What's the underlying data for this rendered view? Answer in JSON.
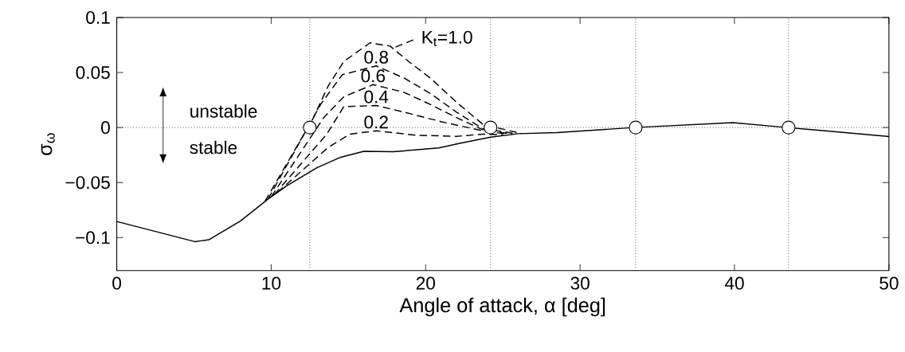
{
  "chart_data": {
    "type": "line",
    "xlabel": "Angle of attack, α [deg]",
    "ylabel": "σ$_{ω}$",
    "xlim": [
      0,
      50
    ],
    "ylim": [
      -0.13,
      0.1
    ],
    "xticks": [
      0,
      10,
      20,
      30,
      40,
      50
    ],
    "yticks": [
      {
        "value": -0.1,
        "label": "−0.1"
      },
      {
        "value": -0.05,
        "label": "−0.05"
      },
      0,
      0.05,
      0.1
    ],
    "series": [
      {
        "color": "#000000",
        "line_style": "solid",
        "x": [
          0,
          5.05,
          5.96,
          8.0,
          9.8,
          11.0,
          12.96,
          14.5,
          16.0,
          17.9,
          20.85,
          22.2,
          24.2,
          26.0,
          28.5,
          33.5,
          39.9,
          43.4,
          49.9,
          50
        ],
        "values": [
          -0.0854,
          -0.1037,
          -0.102,
          -0.085,
          -0.065,
          -0.053,
          -0.0365,
          -0.027,
          -0.0216,
          -0.022,
          -0.0185,
          -0.0144,
          -0.0088,
          -0.0056,
          -0.0046,
          0,
          0.0044,
          0,
          -0.008,
          -0.0082
        ]
      },
      {
        "name": "0.2",
        "color": "#000000",
        "line_style": "dashed",
        "x": [
          10.4,
          13.7,
          15.1,
          16.8,
          19.4,
          22.0,
          23.7,
          25.0
        ],
        "values": [
          -0.059,
          -0.018,
          -0.006,
          -0.003,
          -0.007,
          -0.008,
          -0.006,
          -0.0065
        ]
      },
      {
        "name": "0.4",
        "color": "#000000",
        "line_style": "dashed",
        "x": [
          10.2,
          13.6,
          14.7,
          16.8,
          18.6,
          21.1,
          23.7,
          25.3
        ],
        "values": [
          -0.061,
          -0.006,
          0.019,
          0.02,
          0.014,
          0.005,
          -0.003,
          -0.006
        ]
      },
      {
        "name": "0.6",
        "color": "#000000",
        "line_style": "dashed",
        "x": [
          10.0,
          13.4,
          14.7,
          16.6,
          18.6,
          20.3,
          22.0,
          23.7,
          25.6
        ],
        "values": [
          -0.063,
          0.009,
          0.028,
          0.039,
          0.032,
          0.021,
          0.009,
          -0.002,
          -0.006
        ]
      },
      {
        "name": "0.8",
        "color": "#000000",
        "line_style": "dashed",
        "x": [
          9.8,
          13.2,
          14.6,
          16.8,
          18.6,
          20.3,
          22.0,
          23.7,
          25.9
        ],
        "values": [
          -0.065,
          0.021,
          0.048,
          0.056,
          0.045,
          0.031,
          0.014,
          -0.001,
          -0.0057
        ]
      },
      {
        "name": "K$_{t}$=1.0",
        "color": "#000000",
        "line_style": "dashed",
        "x": [
          9.6,
          12.7,
          13.7,
          14.7,
          16.4,
          17.7,
          18.9,
          20.3,
          22.0,
          23.7,
          26.2
        ],
        "values": [
          -0.067,
          0.008,
          0.038,
          0.06,
          0.077,
          0.074,
          0.06,
          0.045,
          0.023,
          0.003,
          -0.0055
        ]
      },
      {
        "type": "scatter",
        "marker": "circle",
        "color": "#000000",
        "x": [
          12.5,
          24.2,
          33.6,
          43.5
        ],
        "values": [
          0,
          0,
          0,
          0
        ]
      }
    ],
    "ref_lines": [
      {
        "axis": "y",
        "value": 0,
        "line_style": "dotted"
      },
      {
        "axis": "x",
        "value": 12.5,
        "line_style": "dotted"
      },
      {
        "axis": "x",
        "value": 24.2,
        "line_style": "dotted"
      },
      {
        "axis": "x",
        "value": 33.6,
        "line_style": "dotted"
      },
      {
        "axis": "x",
        "value": 43.5,
        "line_style": "dotted"
      }
    ],
    "annotations": [
      "unstable",
      "stable"
    ]
  }
}
